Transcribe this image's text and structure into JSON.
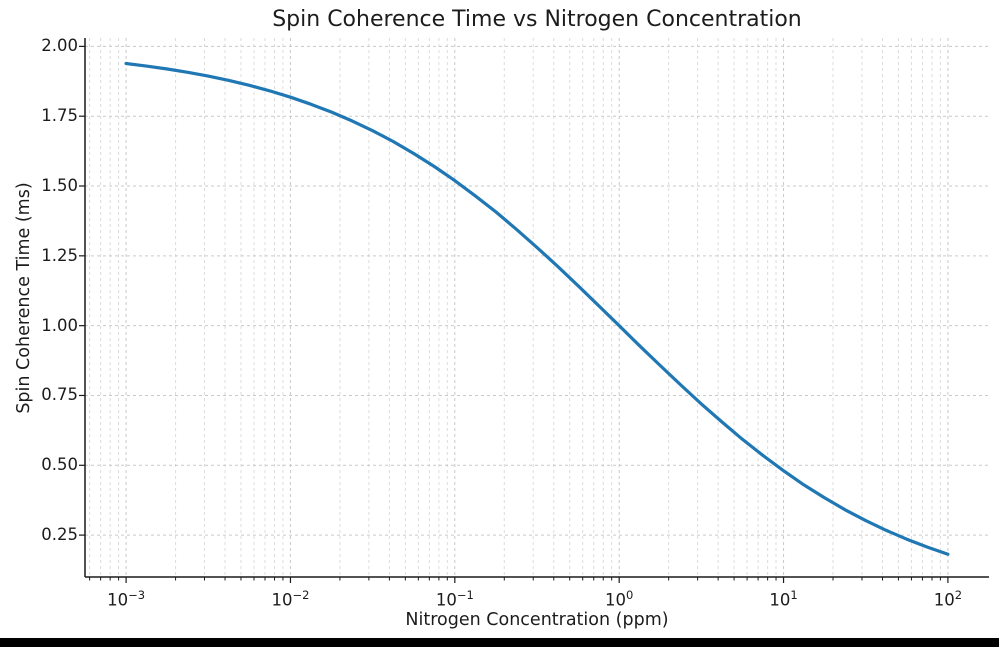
{
  "chart_data": {
    "type": "line",
    "title": "Spin Coherence Time vs Nitrogen Concentration",
    "xlabel": "Nitrogen Concentration (ppm)",
    "ylabel": "Spin Coherence Time (ms)",
    "x_scale": "log",
    "xlim_log10": [
      -3.25,
      2.25
    ],
    "ylim": [
      0.1,
      2.03
    ],
    "grid": "major and minor, dashed light gray",
    "legend": "none",
    "line_color": "#1f77b4",
    "line_width": 3.2,
    "x_ppm": [
      0.001,
      0.00133,
      0.00178,
      0.00237,
      0.00316,
      0.00422,
      0.00562,
      0.0075,
      0.01,
      0.0133,
      0.0178,
      0.0237,
      0.0316,
      0.0422,
      0.0562,
      0.075,
      0.1,
      0.133,
      0.178,
      0.237,
      0.316,
      0.422,
      0.562,
      0.75,
      1,
      1.33,
      1.78,
      2.37,
      3.16,
      4.22,
      5.62,
      7.5,
      10,
      13.3,
      17.8,
      23.7,
      31.6,
      42.2,
      56.2,
      75,
      100
    ],
    "y_ms": [
      1.9387,
      1.9295,
      1.9191,
      1.9071,
      1.8935,
      1.878,
      1.8605,
      1.8406,
      1.8182,
      1.793,
      1.7647,
      1.7331,
      1.698,
      1.6593,
      1.6166,
      1.57,
      1.5195,
      1.465,
      1.4068,
      1.345,
      1.2801,
      1.2126,
      1.1429,
      1.0718,
      1.0,
      0.9282,
      0.8571,
      0.7874,
      0.7199,
      0.655,
      0.5932,
      0.535,
      0.4805,
      0.4299,
      0.3834,
      0.3407,
      0.302,
      0.2669,
      0.2353,
      0.2071,
      0.1818
    ],
    "x_ticks": [
      {
        "value": 0.001,
        "base": "10",
        "exponent": "−3"
      },
      {
        "value": 0.01,
        "base": "10",
        "exponent": "−2"
      },
      {
        "value": 0.1,
        "base": "10",
        "exponent": "−1"
      },
      {
        "value": 1,
        "base": "10",
        "exponent": "0"
      },
      {
        "value": 10,
        "base": "10",
        "exponent": "1"
      },
      {
        "value": 100,
        "base": "10",
        "exponent": "2"
      }
    ],
    "y_ticks": [
      {
        "value": 2.0,
        "label": "2.00"
      },
      {
        "value": 1.75,
        "label": "1.75"
      },
      {
        "value": 1.5,
        "label": "1.50"
      },
      {
        "value": 1.25,
        "label": "1.25"
      },
      {
        "value": 1.0,
        "label": "1.00"
      },
      {
        "value": 0.75,
        "label": "0.75"
      },
      {
        "value": 0.5,
        "label": "0.50"
      },
      {
        "value": 0.25,
        "label": "0.25"
      }
    ],
    "colors": {
      "grid_major": "#c9c9c9",
      "grid_minor": "#dcdcdc",
      "spine": "#1a1a1a",
      "tick": "#1a1a1a",
      "text": "#1c1c1c"
    }
  },
  "bottom_bar": {
    "color": "#000000"
  }
}
